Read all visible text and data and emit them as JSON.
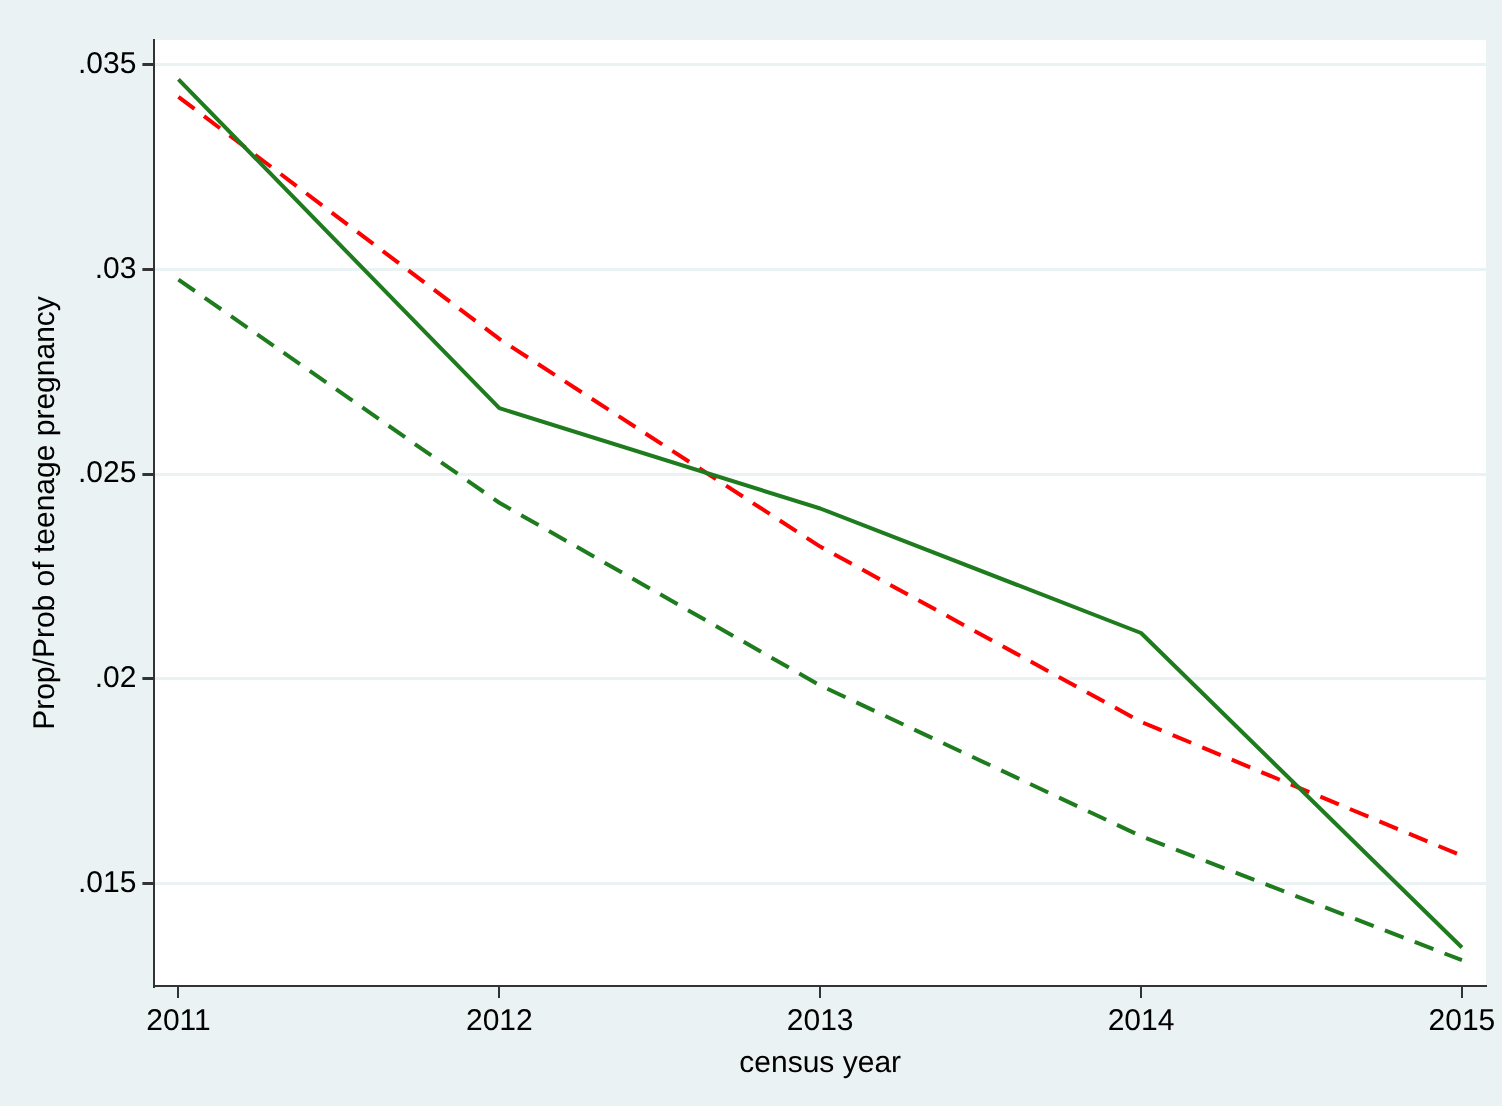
{
  "chart_data": {
    "type": "line",
    "xlabel": "census year",
    "ylabel": "Prop/Prob of teenage pregnancy",
    "x": [
      2011,
      2012,
      2013,
      2014,
      2015
    ],
    "xlim": [
      2010.925,
      2015.075
    ],
    "xticks": [
      2011,
      2012,
      2013,
      2014,
      2015
    ],
    "ylim": [
      0.0125,
      0.0356
    ],
    "yticks": [
      {
        "value": 0.015,
        "label": ".015"
      },
      {
        "value": 0.02,
        "label": ".02"
      },
      {
        "value": 0.025,
        "label": ".025"
      },
      {
        "value": 0.03,
        "label": ".03"
      },
      {
        "value": 0.035,
        "label": ".035"
      }
    ],
    "grid": "y",
    "legend": false,
    "marker": "none",
    "series": [
      {
        "color": "#1e7b1e",
        "line_style": "solid",
        "values": [
          0.03464,
          0.02661,
          0.02416,
          0.02112,
          0.01344
        ]
      },
      {
        "color": "#ff0000",
        "line_style": "dashed",
        "values": [
          0.03421,
          0.0283,
          0.02323,
          0.01895,
          0.01568
        ]
      },
      {
        "color": "#1e7b1e",
        "line_style": "dashed",
        "values": [
          0.02975,
          0.0243,
          0.01984,
          0.01616,
          0.01313
        ]
      }
    ]
  }
}
